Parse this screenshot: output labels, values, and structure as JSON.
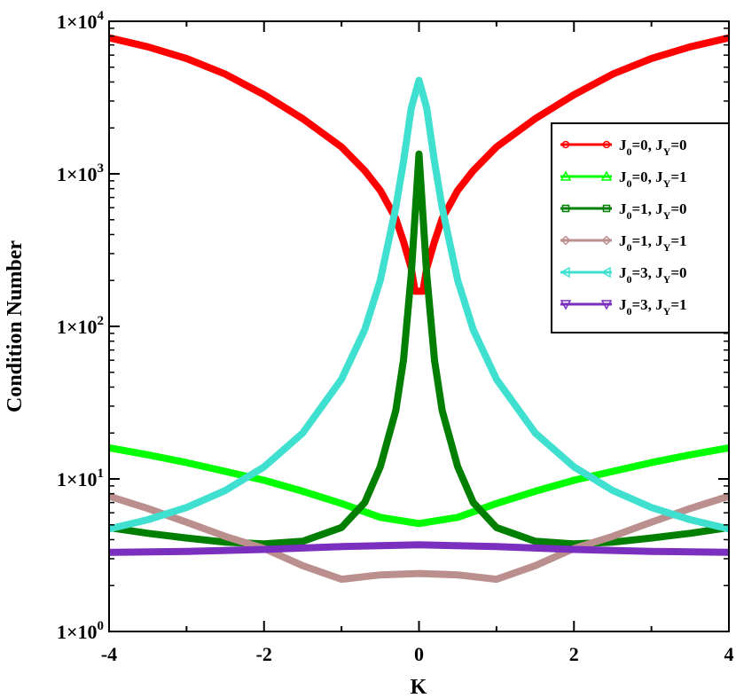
{
  "chart_data": {
    "type": "line",
    "title": "",
    "xlabel": "K",
    "ylabel": "Condition Number",
    "xlim": [
      -4,
      4
    ],
    "ylim": [
      1,
      10000
    ],
    "yscale": "log",
    "grid": false,
    "legend_position": "top-right",
    "xticks": [
      -4,
      -2,
      0,
      2,
      4
    ],
    "xtick_labels": [
      "-4",
      "-2",
      "0",
      "2",
      "4"
    ],
    "yticks": [
      1,
      10,
      100,
      1000,
      10000
    ],
    "ytick_labels": [
      {
        "base": "1×10",
        "exp": "0"
      },
      {
        "base": "1×10",
        "exp": "1"
      },
      {
        "base": "1×10",
        "exp": "2"
      },
      {
        "base": "1×10",
        "exp": "3"
      },
      {
        "base": "1×10",
        "exp": "4"
      }
    ],
    "series": [
      {
        "name": "J0=0, JY=0",
        "j0": "0",
        "jy": "0",
        "marker": "circle",
        "color": "#ff0000",
        "x": [
          -4,
          -3.5,
          -3,
          -2.5,
          -2,
          -1.5,
          -1,
          -0.7,
          -0.5,
          -0.3,
          -0.2,
          -0.1,
          -0.05,
          0.05,
          0.1,
          0.2,
          0.3,
          0.5,
          0.7,
          1,
          1.5,
          2,
          2.5,
          3,
          3.5,
          4
        ],
        "y": [
          7800,
          6800,
          5700,
          4500,
          3300,
          2300,
          1500,
          1050,
          780,
          510,
          360,
          240,
          170,
          170,
          240,
          360,
          510,
          780,
          1050,
          1500,
          2300,
          3300,
          4500,
          5700,
          6800,
          7800
        ]
      },
      {
        "name": "J0=0, JY=1",
        "j0": "0",
        "jy": "1",
        "marker": "triangle-up",
        "color": "#00ff00",
        "x": [
          -4,
          -3.5,
          -3,
          -2.5,
          -2,
          -1.5,
          -1,
          -0.5,
          0,
          0.5,
          1,
          1.5,
          2,
          2.5,
          3,
          3.5,
          4
        ],
        "y": [
          16,
          14.4,
          12.8,
          11.2,
          9.8,
          8.3,
          6.9,
          5.6,
          5.1,
          5.6,
          6.9,
          8.3,
          9.8,
          11.2,
          12.8,
          14.4,
          16
        ]
      },
      {
        "name": "J0=1, JY=0",
        "j0": "1",
        "jy": "0",
        "marker": "square",
        "color": "#007f00",
        "x": [
          -4,
          -3.5,
          -3,
          -2.5,
          -2,
          -1.5,
          -1,
          -0.7,
          -0.5,
          -0.3,
          -0.2,
          -0.1,
          0,
          0.1,
          0.2,
          0.3,
          0.5,
          0.7,
          1,
          1.5,
          2,
          2.5,
          3,
          3.5,
          4
        ],
        "y": [
          4.8,
          4.4,
          4.1,
          3.85,
          3.75,
          3.9,
          4.8,
          7,
          12,
          28,
          60,
          220,
          1350,
          220,
          60,
          28,
          12,
          7,
          4.8,
          3.9,
          3.75,
          3.85,
          4.1,
          4.4,
          4.8
        ]
      },
      {
        "name": "J0=1, JY=1",
        "j0": "1",
        "jy": "1",
        "marker": "diamond",
        "color": "#bc8f8f",
        "x": [
          -4,
          -3.5,
          -3,
          -2.5,
          -2,
          -1.5,
          -1,
          -0.5,
          0,
          0.5,
          1,
          1.5,
          2,
          2.5,
          3,
          3.5,
          4
        ],
        "y": [
          7.7,
          6.4,
          5.2,
          4.2,
          3.5,
          2.7,
          2.2,
          2.35,
          2.4,
          2.35,
          2.2,
          2.7,
          3.5,
          4.2,
          5.2,
          6.4,
          7.7
        ]
      },
      {
        "name": "J0=3, JY=0",
        "j0": "3",
        "jy": "0",
        "marker": "triangle-left",
        "color": "#40e0d0",
        "x": [
          -4,
          -3.5,
          -3,
          -2.5,
          -2,
          -1.5,
          -1,
          -0.7,
          -0.5,
          -0.3,
          -0.2,
          -0.1,
          0,
          0.1,
          0.2,
          0.3,
          0.5,
          0.7,
          1,
          1.5,
          2,
          2.5,
          3,
          3.5,
          4
        ],
        "y": [
          4.7,
          5.4,
          6.5,
          8.4,
          12,
          20,
          45,
          95,
          200,
          600,
          1200,
          2700,
          4100,
          2700,
          1200,
          600,
          200,
          95,
          45,
          20,
          12,
          8.4,
          6.5,
          5.4,
          4.7
        ]
      },
      {
        "name": "J0=3, JY=1",
        "j0": "3",
        "jy": "1",
        "marker": "triangle-down",
        "color": "#7b2fbe",
        "x": [
          -4,
          -3,
          -2,
          -1,
          0,
          1,
          2,
          3,
          4
        ],
        "y": [
          3.3,
          3.35,
          3.45,
          3.6,
          3.7,
          3.6,
          3.45,
          3.35,
          3.3
        ]
      }
    ]
  }
}
